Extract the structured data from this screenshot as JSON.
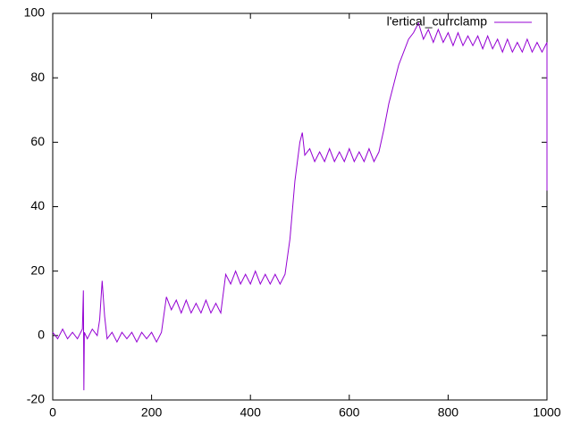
{
  "chart_data": {
    "type": "line",
    "x": [
      0,
      10,
      20,
      30,
      40,
      50,
      60,
      62,
      63,
      64,
      70,
      80,
      90,
      95,
      100,
      105,
      110,
      120,
      130,
      140,
      150,
      160,
      170,
      180,
      190,
      200,
      210,
      220,
      230,
      240,
      250,
      260,
      270,
      280,
      290,
      300,
      310,
      320,
      330,
      340,
      350,
      360,
      370,
      380,
      390,
      400,
      410,
      420,
      430,
      440,
      450,
      460,
      470,
      480,
      490,
      500,
      505,
      510,
      520,
      530,
      540,
      550,
      560,
      570,
      580,
      590,
      600,
      610,
      620,
      630,
      640,
      650,
      660,
      670,
      680,
      690,
      700,
      710,
      720,
      730,
      740,
      750,
      760,
      770,
      780,
      790,
      800,
      810,
      820,
      830,
      840,
      850,
      860,
      870,
      880,
      890,
      900,
      910,
      920,
      930,
      940,
      950,
      960,
      970,
      980,
      990,
      1000,
      1000
    ],
    "series": [
      {
        "name": "l'ertical_currclamp",
        "color": "#9400d3",
        "values": [
          1,
          -1,
          2,
          -1,
          1,
          -1,
          2,
          14,
          -17,
          1,
          -1,
          2,
          0,
          5,
          17,
          6,
          -1,
          1,
          -2,
          1,
          -1,
          1,
          -2,
          1,
          -1,
          1,
          -2,
          1,
          12,
          8,
          11,
          7,
          11,
          7,
          10,
          7,
          11,
          7,
          10,
          7,
          19,
          16,
          20,
          16,
          19,
          16,
          20,
          16,
          19,
          16,
          19,
          16,
          19,
          30,
          48,
          60,
          63,
          56,
          58,
          54,
          57,
          54,
          58,
          54,
          57,
          54,
          58,
          54,
          57,
          54,
          58,
          54,
          57,
          64,
          72,
          78,
          84,
          88,
          92,
          94,
          97,
          92,
          95,
          91,
          95,
          91,
          94,
          90,
          94,
          90,
          93,
          90,
          93,
          89,
          93,
          89,
          92,
          88,
          92,
          88,
          91,
          88,
          92,
          88,
          91,
          88,
          91,
          45
        ]
      }
    ],
    "xlim": [
      0,
      1000
    ],
    "xticks": [
      0,
      200,
      400,
      600,
      800,
      1000
    ],
    "ylim": [
      -20,
      100
    ],
    "yticks": [
      -20,
      0,
      20,
      40,
      60,
      80,
      100
    ],
    "legend": "top-right",
    "grid": false
  }
}
